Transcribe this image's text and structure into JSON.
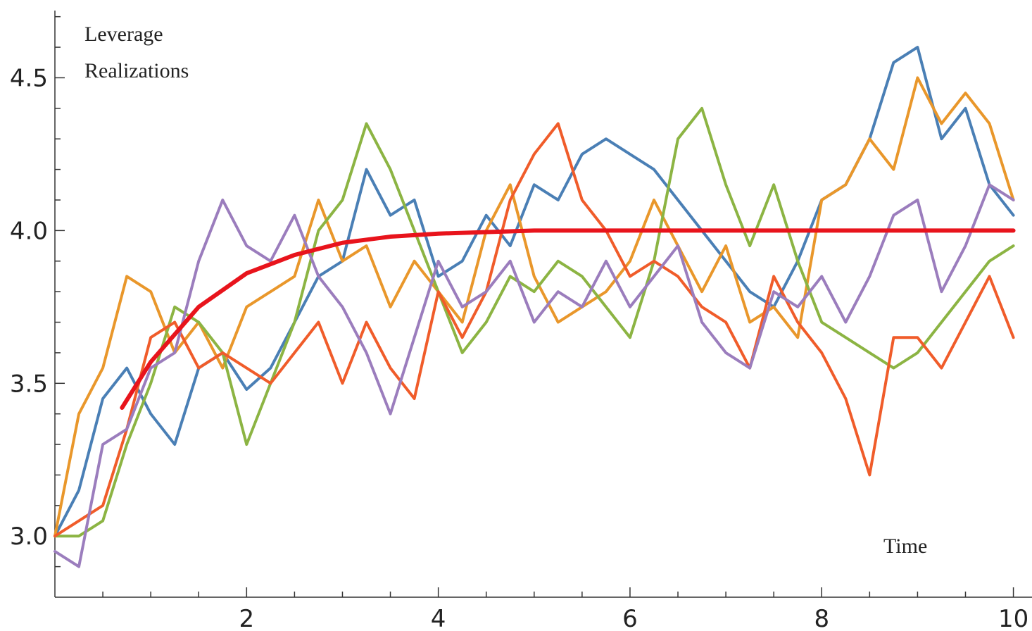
{
  "chart_data": {
    "type": "line",
    "ylabel": [
      "Leverage",
      "Realizations"
    ],
    "xlabel": "Time",
    "xlim": [
      0,
      10.15
    ],
    "ylim": [
      2.8,
      4.72
    ],
    "xticks": [
      2,
      4,
      6,
      8,
      10
    ],
    "xticks_minor": [
      0.5,
      1,
      1.5,
      2.5,
      3,
      3.5,
      4.5,
      5,
      5.5,
      6.5,
      7,
      7.5,
      8.5,
      9,
      9.5
    ],
    "yticks": [
      {
        "value": 3,
        "label": "3.0"
      },
      {
        "value": 3.5,
        "label": "3.5"
      },
      {
        "value": 4,
        "label": "4.0"
      },
      {
        "value": 4.5,
        "label": "4.5"
      }
    ],
    "yticks_minor": [
      2.9,
      3.1,
      3.2,
      3.3,
      3.4,
      3.6,
      3.7,
      3.8,
      3.9,
      4.1,
      4.2,
      4.3,
      4.4,
      4.6,
      4.7
    ],
    "grid": false,
    "x": [
      0,
      0.25,
      0.5,
      0.75,
      1,
      1.25,
      1.5,
      1.75,
      2,
      2.25,
      2.5,
      2.75,
      3,
      3.25,
      3.5,
      3.75,
      4,
      4.25,
      4.5,
      4.75,
      5,
      5.25,
      5.5,
      5.75,
      6,
      6.25,
      6.5,
      6.75,
      7,
      7.25,
      7.5,
      7.75,
      8,
      8.25,
      8.5,
      8.75,
      9,
      9.25,
      9.5,
      9.75,
      10
    ],
    "series": [
      {
        "color": "#4a7fb5",
        "values": [
          3.0,
          3.15,
          3.45,
          3.55,
          3.4,
          3.3,
          3.55,
          3.6,
          3.48,
          3.55,
          3.7,
          3.85,
          3.9,
          4.2,
          4.05,
          4.1,
          3.85,
          3.9,
          4.05,
          3.95,
          4.15,
          4.1,
          4.25,
          4.3,
          4.25,
          4.2,
          4.1,
          4.0,
          3.9,
          3.8,
          3.75,
          3.9,
          4.1,
          4.15,
          4.3,
          4.55,
          4.6,
          4.3,
          4.4,
          4.15,
          4.05
        ]
      },
      {
        "color": "#e9972b",
        "values": [
          3.0,
          3.4,
          3.55,
          3.85,
          3.8,
          3.6,
          3.7,
          3.55,
          3.75,
          3.8,
          3.85,
          4.1,
          3.9,
          3.95,
          3.75,
          3.9,
          3.8,
          3.7,
          4.0,
          4.15,
          3.85,
          3.7,
          3.75,
          3.8,
          3.9,
          4.1,
          3.95,
          3.8,
          3.95,
          3.7,
          3.75,
          3.65,
          4.1,
          4.15,
          4.3,
          4.2,
          4.5,
          4.35,
          4.45,
          4.35,
          4.1
        ]
      },
      {
        "color": "#8cb443",
        "values": [
          3.0,
          3.0,
          3.05,
          3.3,
          3.5,
          3.75,
          3.7,
          3.6,
          3.3,
          3.5,
          3.7,
          4.0,
          4.1,
          4.35,
          4.2,
          4.0,
          3.8,
          3.6,
          3.7,
          3.85,
          3.8,
          3.9,
          3.85,
          3.75,
          3.65,
          3.9,
          4.3,
          4.4,
          4.15,
          3.95,
          4.15,
          3.9,
          3.7,
          3.65,
          3.6,
          3.55,
          3.6,
          3.7,
          3.8,
          3.9,
          3.95
        ]
      },
      {
        "color": "#f05c2a",
        "values": [
          3.0,
          3.05,
          3.1,
          3.35,
          3.65,
          3.7,
          3.55,
          3.6,
          3.55,
          3.5,
          3.6,
          3.7,
          3.5,
          3.7,
          3.55,
          3.45,
          3.8,
          3.65,
          3.8,
          4.1,
          4.25,
          4.35,
          4.1,
          4.0,
          3.85,
          3.9,
          3.85,
          3.75,
          3.7,
          3.55,
          3.85,
          3.7,
          3.6,
          3.45,
          3.2,
          3.65,
          3.65,
          3.55,
          3.7,
          3.85,
          3.65
        ]
      },
      {
        "color": "#9b7dbd",
        "values": [
          2.95,
          2.9,
          3.3,
          3.35,
          3.55,
          3.6,
          3.9,
          4.1,
          3.95,
          3.9,
          4.05,
          3.85,
          3.75,
          3.6,
          3.4,
          3.65,
          3.9,
          3.75,
          3.8,
          3.9,
          3.7,
          3.8,
          3.75,
          3.9,
          3.75,
          3.85,
          3.95,
          3.7,
          3.6,
          3.55,
          3.8,
          3.75,
          3.85,
          3.7,
          3.85,
          4.05,
          4.1,
          3.8,
          3.95,
          4.15,
          4.1
        ]
      },
      {
        "color": "#e8141c",
        "x": [
          0.7,
          1,
          1.5,
          2,
          2.5,
          3,
          3.5,
          4,
          5,
          6,
          8,
          10
        ],
        "values": [
          3.42,
          3.57,
          3.75,
          3.86,
          3.92,
          3.96,
          3.98,
          3.99,
          4.0,
          4.0,
          4.0,
          4.0
        ]
      }
    ]
  }
}
